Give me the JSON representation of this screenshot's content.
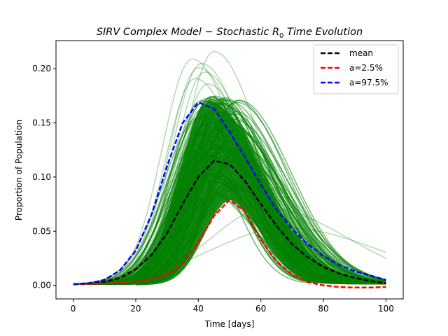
{
  "chart_data": {
    "type": "line",
    "title_parts": [
      "SIRV Complex Model",
      " − ",
      "Stochastic R",
      "0",
      " Time Evolution"
    ],
    "xlabel": "Time [days]",
    "ylabel": "Proportion of Population",
    "xlim": [
      -5.5,
      105.5
    ],
    "ylim": [
      -0.0125,
      0.226
    ],
    "x_ticks": [
      0,
      20,
      40,
      60,
      80,
      100
    ],
    "y_ticks": [
      0.0,
      0.05,
      0.1,
      0.15,
      0.2
    ],
    "y_tick_labels": [
      "0.00",
      "0.05",
      "0.10",
      "0.15",
      "0.20"
    ],
    "grid": false,
    "legend_position": "top-right",
    "colors": {
      "ensemble": "#008000",
      "mean": "#000000",
      "lower": "#ff0000",
      "upper": "#0000ff"
    },
    "series": [
      {
        "name": "mean",
        "color": "#000000",
        "style": "dashed",
        "x": [
          0,
          5,
          10,
          15,
          20,
          25,
          30,
          35,
          40,
          45,
          50,
          55,
          60,
          65,
          70,
          75,
          80,
          85,
          90,
          95,
          100
        ],
        "y": [
          0.001,
          0.0015,
          0.003,
          0.007,
          0.015,
          0.028,
          0.048,
          0.075,
          0.1,
          0.115,
          0.112,
          0.096,
          0.075,
          0.055,
          0.038,
          0.026,
          0.017,
          0.011,
          0.007,
          0.004,
          0.002
        ]
      },
      {
        "name": "a=2.5%",
        "color": "#ff0000",
        "style": "dashed",
        "x": [
          0,
          5,
          10,
          15,
          20,
          25,
          30,
          35,
          40,
          45,
          50,
          55,
          60,
          65,
          70,
          75,
          80,
          85,
          90,
          95,
          100
        ],
        "y": [
          0.001,
          0.0012,
          0.0017,
          0.0025,
          0.0035,
          0.0055,
          0.01,
          0.02,
          0.04,
          0.064,
          0.079,
          0.068,
          0.042,
          0.022,
          0.01,
          0.003,
          0.0,
          -0.0015,
          -0.002,
          -0.002,
          -0.0015
        ]
      },
      {
        "name": "a=97.5%",
        "color": "#0000ff",
        "style": "dashed",
        "x": [
          0,
          5,
          10,
          15,
          20,
          25,
          30,
          35,
          40,
          45,
          50,
          55,
          60,
          65,
          70,
          75,
          80,
          85,
          90,
          95,
          100
        ],
        "y": [
          0.001,
          0.002,
          0.005,
          0.014,
          0.032,
          0.065,
          0.11,
          0.15,
          0.169,
          0.163,
          0.142,
          0.118,
          0.093,
          0.07,
          0.052,
          0.038,
          0.027,
          0.019,
          0.013,
          0.009,
          0.005
        ]
      }
    ]
  }
}
